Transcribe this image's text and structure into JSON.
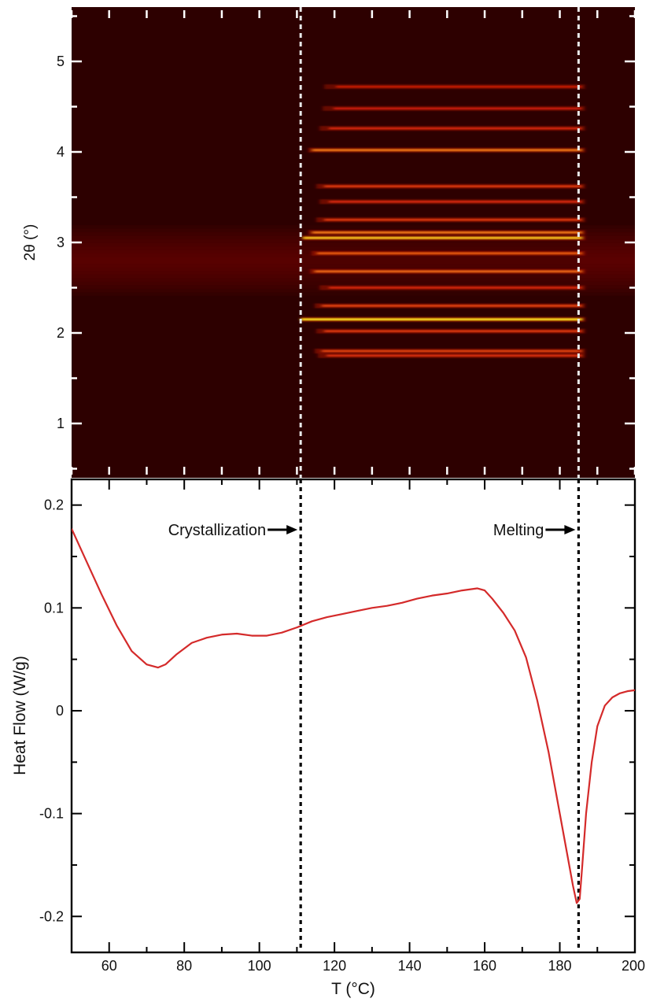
{
  "chart_data": [
    {
      "type": "heatmap",
      "title": "",
      "xlabel": "",
      "ylabel": "2θ (°)",
      "xlim": [
        50,
        200
      ],
      "ylim": [
        0.4,
        5.6
      ],
      "yticks": [
        1,
        2,
        3,
        4,
        5
      ],
      "yticklabels": [
        "1",
        "2",
        "3",
        "4",
        "5"
      ],
      "colormap": "hot",
      "colors": {
        "background": "#2d0000",
        "hot": "#ffcc33",
        "guide_line": "#e8e8e8"
      },
      "grid": false,
      "amorphous_halo": {
        "center": 2.8,
        "range": [
          2.5,
          3.15
        ]
      },
      "crystalline_region": {
        "from": 111,
        "to": 185
      },
      "peaks": [
        {
          "two_theta": 1.75,
          "intensity": 0.45
        },
        {
          "two_theta": 1.8,
          "intensity": 0.55
        },
        {
          "two_theta": 2.02,
          "intensity": 0.5
        },
        {
          "two_theta": 2.15,
          "intensity": 1.0
        },
        {
          "two_theta": 2.3,
          "intensity": 0.55
        },
        {
          "two_theta": 2.5,
          "intensity": 0.4
        },
        {
          "two_theta": 2.68,
          "intensity": 0.7
        },
        {
          "two_theta": 2.88,
          "intensity": 0.65
        },
        {
          "two_theta": 3.05,
          "intensity": 0.95
        },
        {
          "two_theta": 3.11,
          "intensity": 0.75
        },
        {
          "two_theta": 3.25,
          "intensity": 0.5
        },
        {
          "two_theta": 3.45,
          "intensity": 0.4
        },
        {
          "two_theta": 3.62,
          "intensity": 0.5
        },
        {
          "two_theta": 4.02,
          "intensity": 0.75
        },
        {
          "two_theta": 4.26,
          "intensity": 0.4
        },
        {
          "two_theta": 4.48,
          "intensity": 0.3
        },
        {
          "two_theta": 4.72,
          "intensity": 0.25
        }
      ],
      "vlines": [
        111,
        185
      ]
    },
    {
      "type": "line",
      "title": "",
      "xlabel": "T (°C)",
      "ylabel": "Heat Flow (W/g)",
      "xlim": [
        50,
        200
      ],
      "ylim": [
        -0.235,
        0.225
      ],
      "xticks": [
        60,
        80,
        100,
        120,
        140,
        160,
        180,
        200
      ],
      "xticklabels": [
        "60",
        "80",
        "100",
        "120",
        "140",
        "160",
        "180",
        "200"
      ],
      "yticks": [
        -0.2,
        -0.1,
        0,
        0.1,
        0.2
      ],
      "yticklabels": [
        "-0.2",
        "-0.1",
        "0",
        "0.1",
        "0.2"
      ],
      "grid": false,
      "series": [
        {
          "color": "#d42a2a",
          "x": [
            50,
            54,
            58,
            62,
            66,
            70,
            73,
            75,
            78,
            82,
            86,
            90,
            94,
            98,
            102,
            106,
            110,
            114,
            118,
            122,
            126,
            130,
            134,
            138,
            142,
            146,
            150,
            154,
            158,
            160,
            162,
            165,
            168,
            171,
            174,
            177,
            180,
            182,
            183.5,
            184.5,
            185.3,
            186,
            187,
            188.5,
            190,
            192,
            194,
            196,
            198,
            200
          ],
          "y": [
            0.177,
            0.145,
            0.113,
            0.083,
            0.058,
            0.045,
            0.042,
            0.045,
            0.055,
            0.066,
            0.071,
            0.074,
            0.075,
            0.073,
            0.073,
            0.076,
            0.081,
            0.087,
            0.091,
            0.094,
            0.097,
            0.1,
            0.102,
            0.105,
            0.109,
            0.112,
            0.114,
            0.117,
            0.119,
            0.117,
            0.109,
            0.095,
            0.078,
            0.052,
            0.01,
            -0.04,
            -0.1,
            -0.14,
            -0.17,
            -0.187,
            -0.183,
            -0.15,
            -0.1,
            -0.05,
            -0.015,
            0.005,
            0.013,
            0.017,
            0.019,
            0.02
          ]
        }
      ],
      "vlines": [
        111,
        185
      ],
      "annotations": [
        {
          "text": "Crystallization",
          "x": 111,
          "y": 0.176
        },
        {
          "text": "Melting",
          "x": 185,
          "y": 0.176
        }
      ]
    }
  ]
}
